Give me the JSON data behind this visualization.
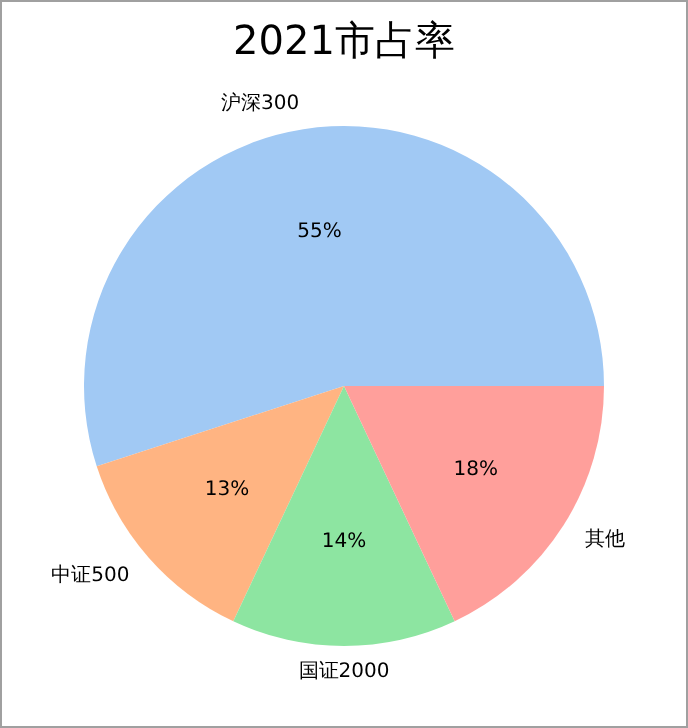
{
  "chart_data": {
    "type": "pie",
    "title": "2021市占率",
    "categories": [
      "沪深300",
      "中证500",
      "国证2000",
      "其他"
    ],
    "values": [
      55,
      13,
      14,
      18
    ],
    "colors": [
      "#a1c9f4",
      "#ffb482",
      "#8de5a1",
      "#ff9f9b"
    ],
    "value_labels": [
      "55%",
      "13%",
      "14%",
      "18%"
    ]
  }
}
